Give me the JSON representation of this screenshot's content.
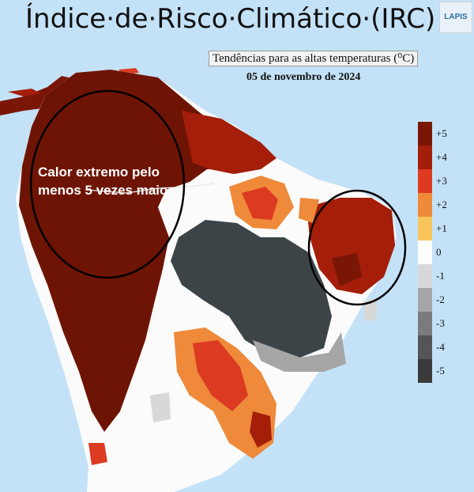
{
  "header": {
    "title": "Índice·de·Risco·Climático·(IRC)",
    "subtitle": "Tendências para as altas temperaturas (⁰C)",
    "date": "05 de novembro de 2024",
    "logo_text": "LAPIS"
  },
  "annotation": {
    "callout_text": "Calor extremo pelo menos 5 vezes maior"
  },
  "legend": {
    "labels": [
      "+5",
      "+4",
      "+3",
      "+2",
      "+1",
      "0",
      "-1",
      "-2",
      "-3",
      "-4",
      "-5"
    ],
    "colors": [
      "#7a1606",
      "#a51e0a",
      "#dc3b22",
      "#ee8a3a",
      "#f7c55a",
      "#ffffff",
      "#d8d8d8",
      "#a6a6a6",
      "#7b7b7b",
      "#555555",
      "#3a3a3a"
    ]
  },
  "colors": {
    "ocean": "#c4e2f7",
    "land_neutral": "#fbfbfb",
    "heat_extreme": "#6e1404",
    "heat_high": "#a51e0a",
    "heat_mid": "#dc3b22",
    "heat_low": "#ee8a3a",
    "heat_slight": "#f7c55a",
    "cool_dark": "#3d4448"
  }
}
